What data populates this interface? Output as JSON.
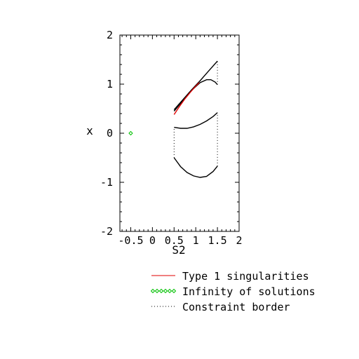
{
  "chart_data": {
    "type": "line",
    "xlabel": "S2",
    "ylabel": "x",
    "xlim": [
      -0.75,
      2
    ],
    "ylim": [
      -2,
      2
    ],
    "xticks": [
      "-0.5",
      "0",
      "0.5",
      "1",
      "1.5",
      "2"
    ],
    "yticks": [
      "-2",
      "-1",
      "0",
      "1",
      "2"
    ],
    "xtick_values": [
      -0.5,
      0,
      0.5,
      1,
      1.5,
      2
    ],
    "ytick_values": [
      -2,
      -1,
      0,
      1,
      2
    ],
    "legend_position": "bottom",
    "legend": [
      {
        "label": "Type 1 singularities",
        "style": "solid",
        "color": "#e00000"
      },
      {
        "label": "Infinity of solutions",
        "style": "diamond",
        "color": "#00c000"
      },
      {
        "label": "Constraint border",
        "style": "dotted",
        "color": "#000000"
      }
    ],
    "curves": [
      {
        "style": "solid",
        "color": "#000000",
        "points": [
          [
            0.5,
            0.48
          ],
          [
            0.7,
            0.68
          ],
          [
            0.9,
            0.88
          ],
          [
            1.1,
            1.07
          ],
          [
            1.3,
            1.27
          ],
          [
            1.5,
            1.47
          ]
        ]
      },
      {
        "style": "solid",
        "color": "#000000",
        "points": [
          [
            0.5,
            0.45
          ],
          [
            0.7,
            0.66
          ],
          [
            0.9,
            0.87
          ],
          [
            1.1,
            1.03
          ],
          [
            1.25,
            1.09
          ],
          [
            1.35,
            1.09
          ],
          [
            1.45,
            1.04
          ],
          [
            1.5,
            0.99
          ]
        ]
      },
      {
        "style": "solid",
        "color": "#000000",
        "points": [
          [
            0.5,
            0.12
          ],
          [
            0.65,
            0.1
          ],
          [
            0.8,
            0.1
          ],
          [
            0.95,
            0.13
          ],
          [
            1.1,
            0.18
          ],
          [
            1.25,
            0.25
          ],
          [
            1.4,
            0.34
          ],
          [
            1.5,
            0.42
          ]
        ]
      },
      {
        "style": "solid",
        "color": "#000000",
        "points": [
          [
            0.5,
            -0.5
          ],
          [
            0.65,
            -0.68
          ],
          [
            0.8,
            -0.8
          ],
          [
            0.95,
            -0.87
          ],
          [
            1.1,
            -0.9
          ],
          [
            1.25,
            -0.88
          ],
          [
            1.4,
            -0.78
          ],
          [
            1.5,
            -0.67
          ]
        ]
      },
      {
        "style": "solid",
        "color": "#e00000",
        "points": [
          [
            0.5,
            0.38
          ],
          [
            0.62,
            0.54
          ],
          [
            0.75,
            0.7
          ],
          [
            0.88,
            0.84
          ],
          [
            1.0,
            0.96
          ],
          [
            1.08,
            1.03
          ]
        ]
      },
      {
        "style": "dotted",
        "color": "#000000",
        "points": [
          [
            0.5,
            -0.5
          ],
          [
            0.5,
            0.12
          ]
        ]
      },
      {
        "style": "dotted",
        "color": "#000000",
        "points": [
          [
            1.5,
            -0.67
          ],
          [
            1.5,
            0.42
          ]
        ]
      },
      {
        "style": "dotted",
        "color": "#000000",
        "points": [
          [
            1.5,
            0.99
          ],
          [
            1.5,
            1.47
          ]
        ]
      }
    ],
    "points": [
      {
        "style": "diamond",
        "color": "#00c000",
        "x": -0.5,
        "y": 0
      }
    ]
  }
}
